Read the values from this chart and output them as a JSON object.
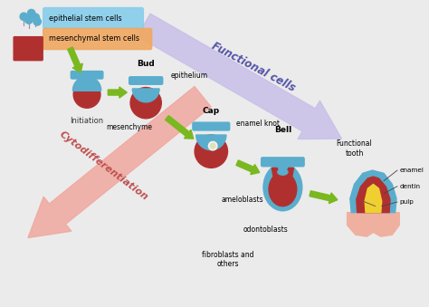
{
  "bg_color": "#ebebeb",
  "labels": {
    "epithelial_stem_cells": "epithelial stem cells",
    "mesenchymal_stem_cells": "mesenchymal stem cells",
    "initiation": "Initiation",
    "bud": "Bud",
    "epithelium": "epithelium",
    "mesenchyme": "mesenchyme",
    "cap": "Cap",
    "enamel_knot": "enamel knot",
    "bell": "Bell",
    "ameloblasts": "ameloblasts",
    "odontoblasts": "odontoblasts",
    "fibroblasts": "fibroblasts and\nothers",
    "functional_tooth": "Functional\ntooth",
    "enamel": "enamel",
    "dentin": "dentin",
    "pulp": "pulp",
    "functional_cells": "Functional cells",
    "cytodiff": "Cytodifferentiation"
  },
  "colors": {
    "blue": "#5aadcc",
    "red": "#b03030",
    "white_bg": "#e8e8e8",
    "arrow_purple": "#c8c0e8",
    "arrow_pink": "#f0a8a0",
    "arrow_green": "#7ab820",
    "legend_blue": "#87ceeb",
    "legend_orange": "#f0a860",
    "yellow": "#f0d030",
    "gum_pink": "#f0b0a0",
    "page_bg": "#ebebeb"
  },
  "layout": {
    "xmax": 10.0,
    "ymax": 7.0
  }
}
